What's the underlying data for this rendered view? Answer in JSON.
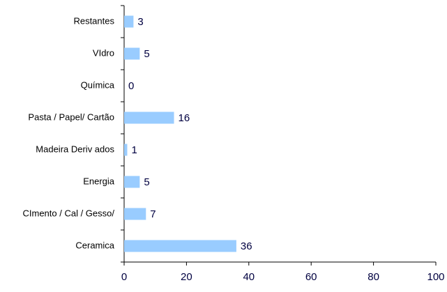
{
  "chart_data": {
    "type": "barh",
    "categories": [
      "Restantes",
      "VIdro",
      "Química",
      "Pasta / Papel/ Cartão",
      "Madeira Deriv ados",
      "Energia",
      "CImento / Cal / Gesso/",
      "Ceramica"
    ],
    "values": [
      3,
      5,
      0,
      16,
      1,
      5,
      7,
      36
    ],
    "color": "#99ccff",
    "xlim": [
      0,
      100
    ],
    "xticks": [
      0,
      20,
      40,
      60,
      80,
      100
    ],
    "grid": false
  }
}
